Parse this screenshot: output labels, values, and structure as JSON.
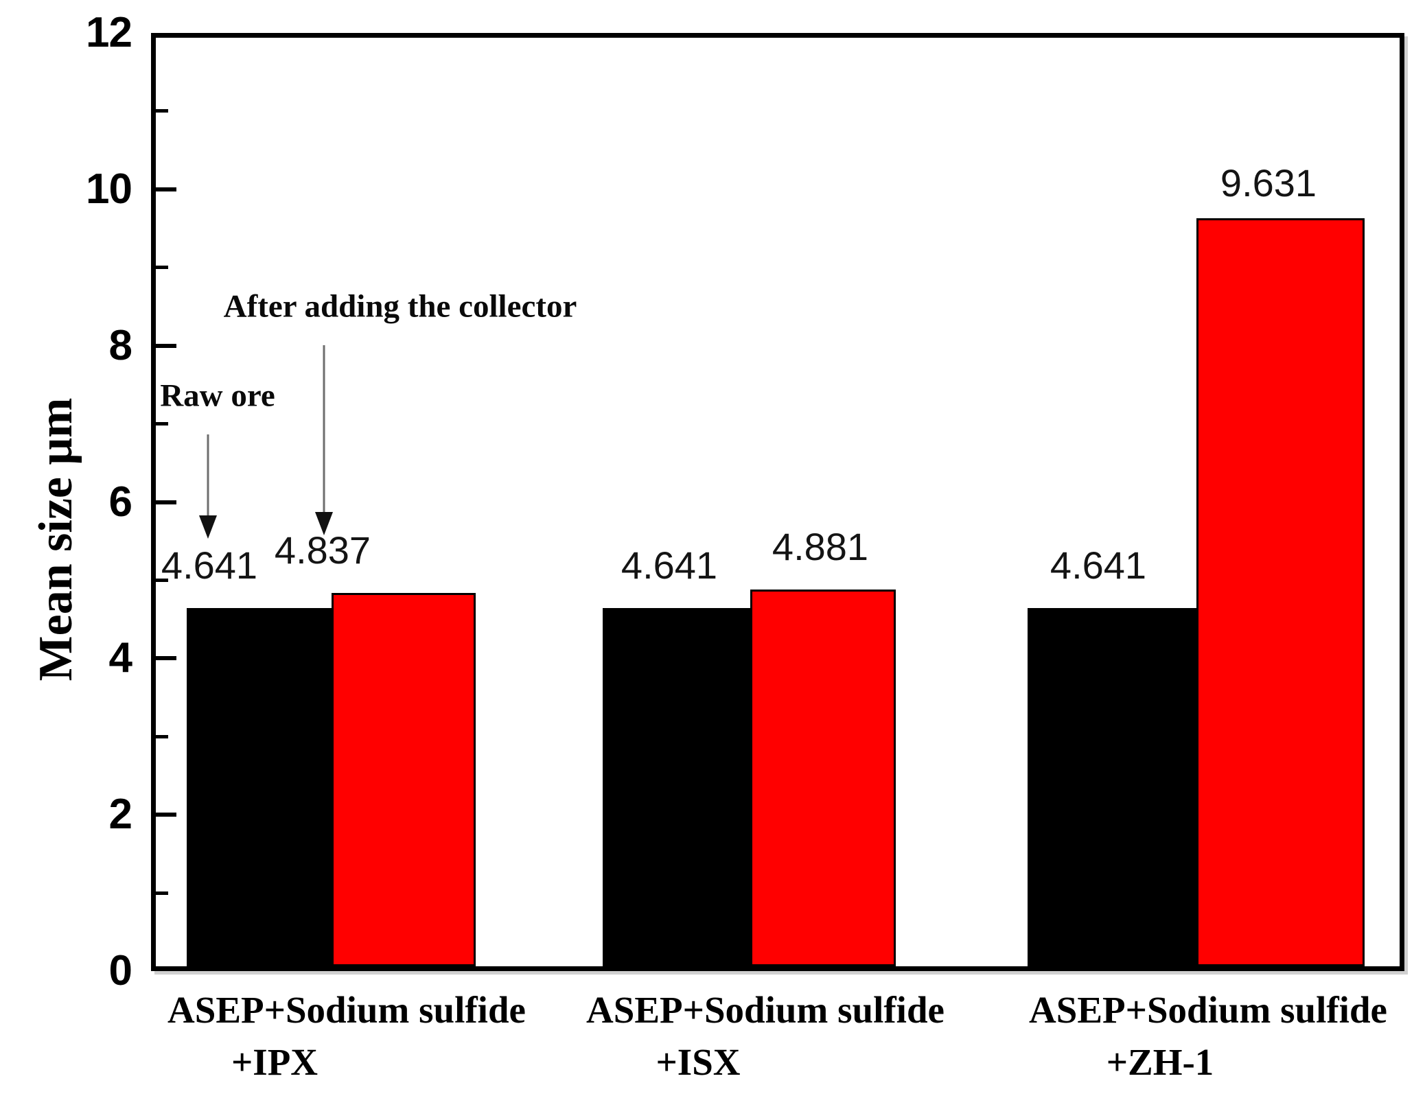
{
  "chart_data": {
    "type": "bar",
    "title": "",
    "xlabel": "",
    "ylabel": "Mean size μm",
    "ylim": [
      0,
      12
    ],
    "yticks_major": [
      0,
      2,
      4,
      6,
      8,
      10,
      12
    ],
    "yticks_minor": [
      1,
      3,
      5,
      7,
      9,
      11
    ],
    "grid": false,
    "legend_position": "none",
    "categories": [
      "ASEP+Sodium sulfide +IPX",
      "ASEP+Sodium sulfide +ISX",
      "ASEP+Sodium sulfide +ZH-1"
    ],
    "category_lines": [
      {
        "line1": "ASEP+Sodium sulfide",
        "line2": "+IPX"
      },
      {
        "line1": "ASEP+Sodium sulfide",
        "line2": "+ISX"
      },
      {
        "line1": "ASEP+Sodium sulfide",
        "line2": "+ZH-1"
      }
    ],
    "series": [
      {
        "name": "Raw ore",
        "color": "#000000",
        "values": [
          4.641,
          4.641,
          4.641
        ],
        "labels": [
          "4.641",
          "4.641",
          "4.641"
        ]
      },
      {
        "name": "After adding the collector",
        "color": "#ff0000",
        "values": [
          4.837,
          4.881,
          9.631
        ],
        "labels": [
          "4.837",
          "4.881",
          "9.631"
        ]
      }
    ],
    "annotations": [
      {
        "text": "Raw ore"
      },
      {
        "text": "After adding the collector"
      }
    ]
  },
  "colors": {
    "bar_black": "#000000",
    "bar_red": "#ff0000",
    "axis": "#000000",
    "arrow_line": "#6e6e6e",
    "arrow_head": "#111111"
  }
}
